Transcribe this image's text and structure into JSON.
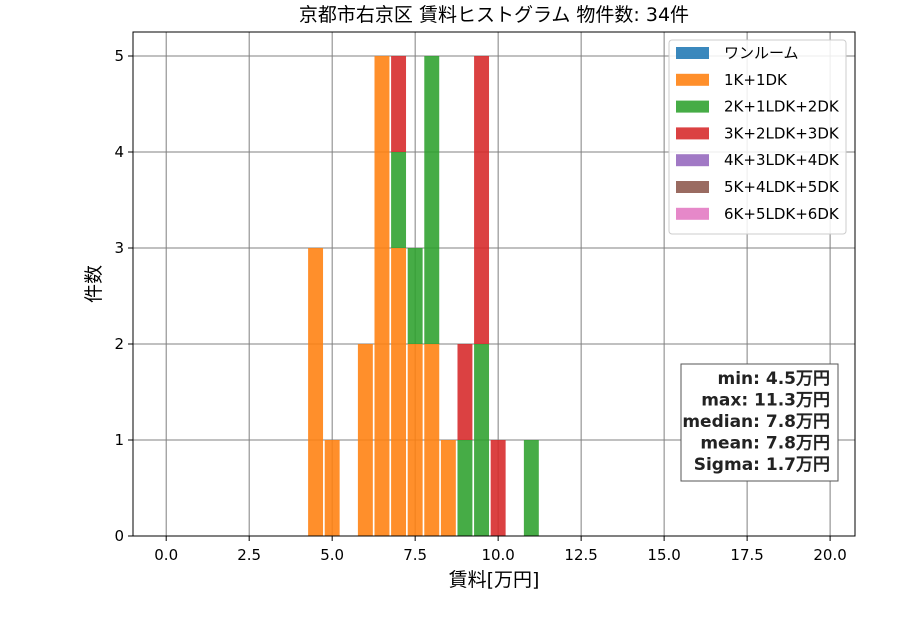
{
  "chart_data": {
    "type": "bar",
    "subtype": "stacked-histogram",
    "title": "京都市右京区 賃料ヒストグラム  物件数: 34件",
    "xlabel": "賃料[万円]",
    "ylabel": "件数",
    "xlim": [
      -1.0,
      20.75
    ],
    "ylim": [
      0,
      5.25
    ],
    "x_ticks": [
      0.0,
      2.5,
      5.0,
      7.5,
      10.0,
      12.5,
      15.0,
      17.5,
      20.0
    ],
    "x_tick_labels": [
      "0.0",
      "2.5",
      "5.0",
      "7.5",
      "10.0",
      "12.5",
      "15.0",
      "17.5",
      "20.0"
    ],
    "y_ticks": [
      0,
      1,
      2,
      3,
      4,
      5
    ],
    "y_tick_labels": [
      "0",
      "1",
      "2",
      "3",
      "4",
      "5"
    ],
    "grid": true,
    "legend_position": "top-right",
    "bin_width": 0.5,
    "bar_width": 0.45,
    "series": [
      {
        "name": "ワンルーム",
        "color": "#1f77b4",
        "bins": []
      },
      {
        "name": "1K+1DK",
        "color": "#ff7f0e",
        "bins": [
          {
            "x": 4.5,
            "count": 3
          },
          {
            "x": 5.0,
            "count": 1
          },
          {
            "x": 6.0,
            "count": 2
          },
          {
            "x": 6.5,
            "count": 5
          },
          {
            "x": 7.0,
            "count": 3
          },
          {
            "x": 7.5,
            "count": 2
          },
          {
            "x": 8.0,
            "count": 2
          },
          {
            "x": 8.5,
            "count": 1
          }
        ]
      },
      {
        "name": "2K+1LDK+2DK",
        "color": "#2ca02c",
        "bins": [
          {
            "x": 7.0,
            "count": 1
          },
          {
            "x": 7.5,
            "count": 1
          },
          {
            "x": 8.0,
            "count": 3
          },
          {
            "x": 9.0,
            "count": 1
          },
          {
            "x": 9.5,
            "count": 2
          },
          {
            "x": 11.0,
            "count": 1
          }
        ]
      },
      {
        "name": "3K+2LDK+3DK",
        "color": "#d62728",
        "bins": [
          {
            "x": 7.0,
            "count": 1
          },
          {
            "x": 9.0,
            "count": 1
          },
          {
            "x": 9.5,
            "count": 3
          },
          {
            "x": 10.0,
            "count": 1
          }
        ]
      },
      {
        "name": "4K+3LDK+4DK",
        "color": "#9467bd",
        "bins": []
      },
      {
        "name": "5K+4LDK+5DK",
        "color": "#8c564b",
        "bins": []
      },
      {
        "name": "6K+5LDK+6DK",
        "color": "#e377c2",
        "bins": []
      }
    ],
    "stats": [
      "min: 4.5万円",
      "max: 11.3万円",
      "median: 7.8万円",
      "mean: 7.8万円",
      "Sigma: 1.7万円"
    ]
  }
}
